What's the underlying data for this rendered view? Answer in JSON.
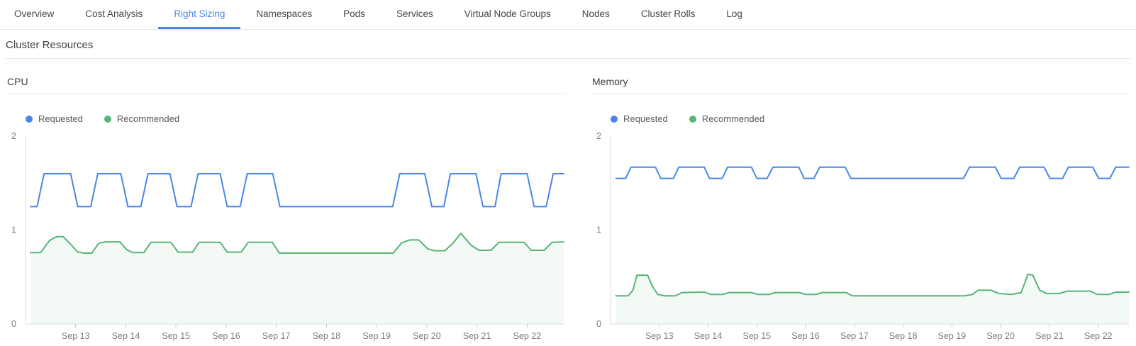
{
  "tabs": [
    {
      "label": "Overview",
      "active": false
    },
    {
      "label": "Cost Analysis",
      "active": false
    },
    {
      "label": "Right Sizing",
      "active": true
    },
    {
      "label": "Namespaces",
      "active": false
    },
    {
      "label": "Pods",
      "active": false
    },
    {
      "label": "Services",
      "active": false
    },
    {
      "label": "Virtual Node Groups",
      "active": false
    },
    {
      "label": "Nodes",
      "active": false
    },
    {
      "label": "Cluster Rolls",
      "active": false
    },
    {
      "label": "Log",
      "active": false
    }
  ],
  "section_title": "Cluster Resources",
  "colors": {
    "accent_blue": "#4a86e8",
    "requested_line": "#4a86e8",
    "recommended_line": "#57b575",
    "recommended_fill": "rgba(87,181,117,0.07)",
    "axis_line": "#dcdee0",
    "tick_mark": "#c6c8ca",
    "tick_label": "#797c80"
  },
  "chart_data": [
    {
      "type": "line",
      "title": "CPU",
      "grid": false,
      "legend_position": "top-left",
      "xlim": [
        0,
        10.73
      ],
      "ylim": [
        0,
        2
      ],
      "yticks": [
        0,
        1,
        2
      ],
      "xticks": [
        {
          "x": 1,
          "label": "Sep 13"
        },
        {
          "x": 2,
          "label": "Sep 14"
        },
        {
          "x": 3,
          "label": "Sep 15"
        },
        {
          "x": 4,
          "label": "Sep 16"
        },
        {
          "x": 5,
          "label": "Sep 17"
        },
        {
          "x": 6,
          "label": "Sep 18"
        },
        {
          "x": 7,
          "label": "Sep 19"
        },
        {
          "x": 8,
          "label": "Sep 20"
        },
        {
          "x": 9,
          "label": "Sep 21"
        },
        {
          "x": 10,
          "label": "Sep 22"
        }
      ],
      "series": [
        {
          "name": "Requested",
          "color": "#4a86e8",
          "fill": false,
          "points": [
            [
              0.1,
              1.25
            ],
            [
              0.23,
              1.25
            ],
            [
              0.37,
              1.6
            ],
            [
              0.9,
              1.6
            ],
            [
              1.04,
              1.25
            ],
            [
              1.3,
              1.25
            ],
            [
              1.44,
              1.6
            ],
            [
              1.9,
              1.6
            ],
            [
              2.04,
              1.25
            ],
            [
              2.3,
              1.25
            ],
            [
              2.44,
              1.6
            ],
            [
              2.88,
              1.6
            ],
            [
              3.02,
              1.25
            ],
            [
              3.3,
              1.25
            ],
            [
              3.44,
              1.6
            ],
            [
              3.88,
              1.6
            ],
            [
              4.02,
              1.25
            ],
            [
              4.28,
              1.25
            ],
            [
              4.42,
              1.6
            ],
            [
              4.93,
              1.6
            ],
            [
              5.07,
              1.25
            ],
            [
              7.32,
              1.25
            ],
            [
              7.46,
              1.6
            ],
            [
              7.96,
              1.6
            ],
            [
              8.1,
              1.25
            ],
            [
              8.34,
              1.25
            ],
            [
              8.47,
              1.6
            ],
            [
              8.98,
              1.6
            ],
            [
              9.12,
              1.25
            ],
            [
              9.36,
              1.25
            ],
            [
              9.48,
              1.6
            ],
            [
              10.0,
              1.6
            ],
            [
              10.14,
              1.25
            ],
            [
              10.38,
              1.25
            ],
            [
              10.52,
              1.6
            ],
            [
              10.73,
              1.6
            ]
          ]
        },
        {
          "name": "Recommended",
          "color": "#57b575",
          "fill": true,
          "points": [
            [
              0.1,
              0.76
            ],
            [
              0.3,
              0.76
            ],
            [
              0.48,
              0.89
            ],
            [
              0.62,
              0.93
            ],
            [
              0.75,
              0.93
            ],
            [
              0.9,
              0.85
            ],
            [
              1.03,
              0.77
            ],
            [
              1.15,
              0.755
            ],
            [
              1.32,
              0.755
            ],
            [
              1.46,
              0.86
            ],
            [
              1.6,
              0.875
            ],
            [
              1.88,
              0.875
            ],
            [
              2.02,
              0.79
            ],
            [
              2.14,
              0.76
            ],
            [
              2.36,
              0.76
            ],
            [
              2.5,
              0.87
            ],
            [
              2.9,
              0.87
            ],
            [
              3.04,
              0.765
            ],
            [
              3.33,
              0.765
            ],
            [
              3.46,
              0.87
            ],
            [
              3.88,
              0.87
            ],
            [
              4.02,
              0.765
            ],
            [
              4.3,
              0.765
            ],
            [
              4.44,
              0.87
            ],
            [
              4.92,
              0.87
            ],
            [
              5.06,
              0.755
            ],
            [
              7.33,
              0.755
            ],
            [
              7.5,
              0.865
            ],
            [
              7.66,
              0.895
            ],
            [
              7.84,
              0.895
            ],
            [
              8.02,
              0.8
            ],
            [
              8.16,
              0.78
            ],
            [
              8.36,
              0.78
            ],
            [
              8.52,
              0.86
            ],
            [
              8.68,
              0.965
            ],
            [
              8.88,
              0.84
            ],
            [
              9.04,
              0.785
            ],
            [
              9.28,
              0.785
            ],
            [
              9.44,
              0.87
            ],
            [
              9.94,
              0.87
            ],
            [
              10.08,
              0.785
            ],
            [
              10.34,
              0.785
            ],
            [
              10.5,
              0.87
            ],
            [
              10.73,
              0.875
            ]
          ]
        }
      ]
    },
    {
      "type": "line",
      "title": "Memory",
      "grid": false,
      "legend_position": "top-left",
      "xlim": [
        0,
        10.63
      ],
      "ylim": [
        0,
        2
      ],
      "yticks": [
        0,
        1,
        2
      ],
      "xticks": [
        {
          "x": 1,
          "label": "Sep 13"
        },
        {
          "x": 2,
          "label": "Sep 14"
        },
        {
          "x": 3,
          "label": "Sep 15"
        },
        {
          "x": 4,
          "label": "Sep 16"
        },
        {
          "x": 5,
          "label": "Sep 17"
        },
        {
          "x": 6,
          "label": "Sep 18"
        },
        {
          "x": 7,
          "label": "Sep 19"
        },
        {
          "x": 8,
          "label": "Sep 20"
        },
        {
          "x": 9,
          "label": "Sep 21"
        },
        {
          "x": 10,
          "label": "Sep 22"
        }
      ],
      "series": [
        {
          "name": "Requested",
          "color": "#4a86e8",
          "fill": false,
          "points": [
            [
              0.11,
              1.55
            ],
            [
              0.31,
              1.55
            ],
            [
              0.42,
              1.67
            ],
            [
              0.92,
              1.67
            ],
            [
              1.03,
              1.55
            ],
            [
              1.29,
              1.55
            ],
            [
              1.4,
              1.67
            ],
            [
              1.92,
              1.67
            ],
            [
              2.03,
              1.55
            ],
            [
              2.29,
              1.55
            ],
            [
              2.4,
              1.67
            ],
            [
              2.89,
              1.67
            ],
            [
              3.0,
              1.55
            ],
            [
              3.21,
              1.55
            ],
            [
              3.33,
              1.67
            ],
            [
              3.86,
              1.67
            ],
            [
              3.97,
              1.55
            ],
            [
              4.17,
              1.55
            ],
            [
              4.29,
              1.67
            ],
            [
              4.81,
              1.67
            ],
            [
              4.93,
              1.55
            ],
            [
              7.24,
              1.55
            ],
            [
              7.36,
              1.67
            ],
            [
              7.89,
              1.67
            ],
            [
              8.01,
              1.55
            ],
            [
              8.27,
              1.55
            ],
            [
              8.39,
              1.67
            ],
            [
              8.89,
              1.67
            ],
            [
              9.01,
              1.55
            ],
            [
              9.27,
              1.55
            ],
            [
              9.39,
              1.67
            ],
            [
              9.89,
              1.67
            ],
            [
              10.01,
              1.55
            ],
            [
              10.24,
              1.55
            ],
            [
              10.36,
              1.67
            ],
            [
              10.63,
              1.67
            ]
          ]
        },
        {
          "name": "Recommended",
          "color": "#57b575",
          "fill": true,
          "points": [
            [
              0.11,
              0.3
            ],
            [
              0.36,
              0.3
            ],
            [
              0.46,
              0.36
            ],
            [
              0.54,
              0.52
            ],
            [
              0.76,
              0.52
            ],
            [
              0.86,
              0.4
            ],
            [
              0.97,
              0.315
            ],
            [
              1.12,
              0.3
            ],
            [
              1.33,
              0.3
            ],
            [
              1.46,
              0.335
            ],
            [
              1.92,
              0.34
            ],
            [
              2.06,
              0.315
            ],
            [
              2.3,
              0.315
            ],
            [
              2.43,
              0.335
            ],
            [
              2.89,
              0.335
            ],
            [
              3.02,
              0.315
            ],
            [
              3.25,
              0.315
            ],
            [
              3.38,
              0.335
            ],
            [
              3.87,
              0.335
            ],
            [
              4.0,
              0.315
            ],
            [
              4.21,
              0.315
            ],
            [
              4.34,
              0.335
            ],
            [
              4.83,
              0.335
            ],
            [
              4.96,
              0.3
            ],
            [
              7.26,
              0.3
            ],
            [
              7.42,
              0.315
            ],
            [
              7.54,
              0.36
            ],
            [
              7.8,
              0.36
            ],
            [
              7.96,
              0.325
            ],
            [
              8.22,
              0.315
            ],
            [
              8.42,
              0.335
            ],
            [
              8.56,
              0.53
            ],
            [
              8.66,
              0.52
            ],
            [
              8.8,
              0.36
            ],
            [
              8.94,
              0.325
            ],
            [
              9.2,
              0.325
            ],
            [
              9.36,
              0.35
            ],
            [
              9.84,
              0.35
            ],
            [
              9.98,
              0.315
            ],
            [
              10.22,
              0.315
            ],
            [
              10.36,
              0.34
            ],
            [
              10.63,
              0.34
            ]
          ]
        }
      ]
    }
  ]
}
